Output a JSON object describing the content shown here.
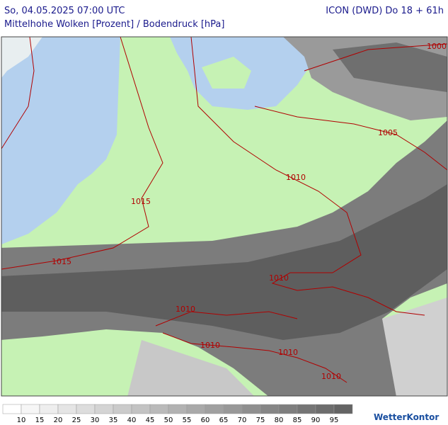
{
  "header": {
    "datetime": "So, 04.05.2025 07:00 UTC",
    "model": "ICON (DWD) Do 18 + 61h",
    "subtitle": "Mittelhohe Wolken [Prozent] / Bodendruck [hPa]"
  },
  "isobar_labels": [
    "1000",
    "1005",
    "1010",
    "1015",
    "1015",
    "1010",
    "1010",
    "1010",
    "1010",
    "1010"
  ],
  "legend": {
    "labels": [
      10,
      15,
      20,
      25,
      30,
      35,
      40,
      45,
      50,
      55,
      60,
      65,
      70,
      75,
      80,
      85,
      90,
      95
    ]
  },
  "logo": "WetterKontor"
}
